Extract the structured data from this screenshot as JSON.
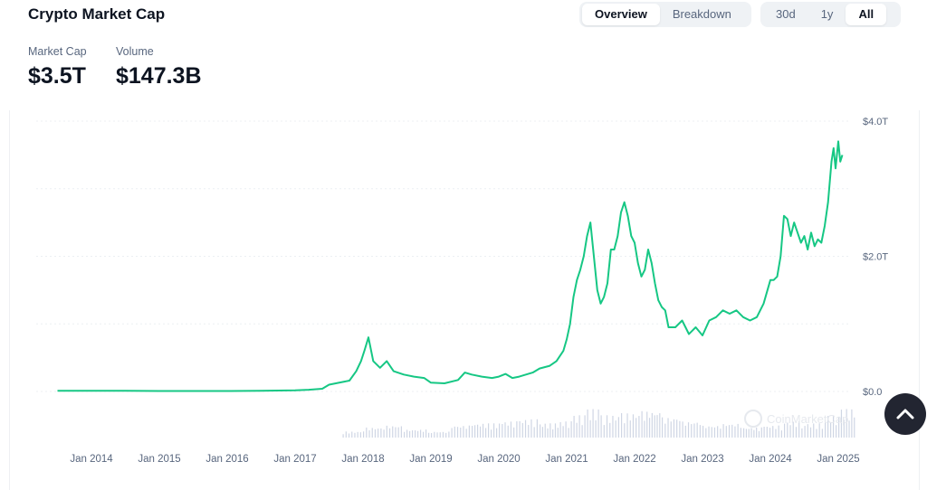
{
  "header": {
    "title": "Crypto Market Cap"
  },
  "view_tabs": [
    {
      "label": "Overview",
      "active": true
    },
    {
      "label": "Breakdown",
      "active": false
    }
  ],
  "range_tabs": [
    {
      "label": "30d",
      "active": false
    },
    {
      "label": "1y",
      "active": false
    },
    {
      "label": "All",
      "active": true
    }
  ],
  "stats": {
    "market_cap": {
      "label": "Market Cap",
      "value": "$3.5T"
    },
    "volume": {
      "label": "Volume",
      "value": "$147.3B"
    }
  },
  "watermark": "CoinMarketCap",
  "scroll_top_icon": "chevron-up-icon",
  "chart_data": {
    "type": "area",
    "title": "",
    "xlabel": "",
    "ylabel": "",
    "ylim": [
      0,
      4.0
    ],
    "y_ticks": [
      "$0.0",
      "$2.0T",
      "$4.0T"
    ],
    "x_ticks": [
      "Jan 2014",
      "Jan 2015",
      "Jan 2016",
      "Jan 2017",
      "Jan 2018",
      "Jan 2019",
      "Jan 2020",
      "Jan 2021",
      "Jan 2022",
      "Jan 2023",
      "Jan 2024",
      "Jan 2025"
    ],
    "grid": true,
    "line_color": "#16c784",
    "volume_color": "#cfd6e4",
    "series": [
      {
        "values_unit": "trillion USD",
        "x": [
          2013.5,
          2014.0,
          2014.5,
          2015.0,
          2016.0,
          2016.5,
          2017.0,
          2017.2,
          2017.4,
          2017.5,
          2017.7,
          2017.8,
          2017.9,
          2017.97,
          2018.02,
          2018.08,
          2018.15,
          2018.25,
          2018.35,
          2018.45,
          2018.6,
          2018.75,
          2018.9,
          2019.0,
          2019.2,
          2019.4,
          2019.5,
          2019.6,
          2019.75,
          2019.9,
          2020.0,
          2020.1,
          2020.2,
          2020.3,
          2020.5,
          2020.6,
          2020.75,
          2020.85,
          2020.95,
          2021.0,
          2021.05,
          2021.1,
          2021.15,
          2021.2,
          2021.25,
          2021.3,
          2021.35,
          2021.4,
          2021.45,
          2021.5,
          2021.55,
          2021.6,
          2021.65,
          2021.7,
          2021.75,
          2021.8,
          2021.85,
          2021.9,
          2021.95,
          2022.0,
          2022.05,
          2022.1,
          2022.15,
          2022.2,
          2022.25,
          2022.3,
          2022.35,
          2022.4,
          2022.45,
          2022.5,
          2022.6,
          2022.7,
          2022.8,
          2022.9,
          2023.0,
          2023.1,
          2023.2,
          2023.3,
          2023.4,
          2023.5,
          2023.6,
          2023.7,
          2023.8,
          2023.9,
          2024.0,
          2024.05,
          2024.1,
          2024.15,
          2024.2,
          2024.25,
          2024.3,
          2024.35,
          2024.4,
          2024.45,
          2024.5,
          2024.55,
          2024.6,
          2024.65,
          2024.7,
          2024.75,
          2024.8,
          2024.85,
          2024.9,
          2024.93,
          2024.96,
          2025.0,
          2025.03,
          2025.06
        ],
        "values": [
          0.01,
          0.01,
          0.01,
          0.007,
          0.007,
          0.01,
          0.018,
          0.025,
          0.04,
          0.1,
          0.14,
          0.16,
          0.3,
          0.45,
          0.6,
          0.8,
          0.45,
          0.35,
          0.45,
          0.3,
          0.25,
          0.22,
          0.2,
          0.13,
          0.12,
          0.17,
          0.28,
          0.25,
          0.22,
          0.2,
          0.22,
          0.26,
          0.2,
          0.22,
          0.28,
          0.34,
          0.38,
          0.45,
          0.6,
          0.77,
          1.0,
          1.4,
          1.65,
          1.8,
          2.0,
          2.3,
          2.5,
          2.0,
          1.5,
          1.3,
          1.4,
          1.6,
          2.1,
          2.1,
          2.3,
          2.65,
          2.8,
          2.6,
          2.3,
          2.2,
          1.9,
          1.7,
          1.8,
          2.1,
          1.9,
          1.6,
          1.35,
          1.25,
          1.2,
          0.95,
          0.95,
          1.05,
          0.85,
          0.95,
          0.83,
          1.05,
          1.1,
          1.2,
          1.15,
          1.2,
          1.1,
          1.05,
          1.1,
          1.3,
          1.65,
          1.65,
          1.7,
          2.0,
          2.6,
          2.55,
          2.3,
          2.5,
          2.35,
          2.2,
          2.3,
          2.1,
          2.35,
          2.15,
          2.25,
          2.2,
          2.45,
          2.8,
          3.4,
          3.6,
          3.3,
          3.7,
          3.4,
          3.5
        ]
      },
      {
        "name": "Volume",
        "values_unit": "relative",
        "x": [
          2017.7,
          2018.0,
          2018.3,
          2018.6,
          2019.0,
          2019.3,
          2019.6,
          2020.0,
          2020.3,
          2020.6,
          2020.9,
          2021.1,
          2021.3,
          2021.5,
          2021.8,
          2022.1,
          2022.4,
          2022.7,
          2023.0,
          2023.3,
          2023.6,
          2023.9,
          2024.2,
          2024.5,
          2024.8,
          2025.0
        ],
        "values": [
          0.15,
          0.25,
          0.3,
          0.2,
          0.15,
          0.3,
          0.35,
          0.4,
          0.45,
          0.35,
          0.4,
          0.55,
          0.7,
          0.55,
          0.6,
          0.65,
          0.5,
          0.4,
          0.3,
          0.35,
          0.25,
          0.3,
          0.4,
          0.35,
          0.55,
          0.7
        ]
      }
    ]
  }
}
